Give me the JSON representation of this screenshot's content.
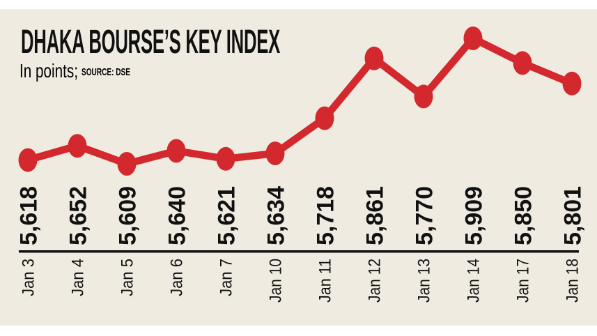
{
  "title": "DHAKA BOURSE’S KEY INDEX",
  "subtitle": "In points;",
  "source_label": "SOURCE: DSE",
  "colors": {
    "line": "#d2282e",
    "panel_background": "#f0ebe1",
    "page_background": "#ffffff",
    "text": "#111111"
  },
  "chart_data": {
    "type": "line",
    "title": "DHAKA BOURSE'S KEY INDEX",
    "ylabel": "In points",
    "xlabel": "",
    "source": "DSE",
    "categories": [
      "Jan 3",
      "Jan 4",
      "Jan 5",
      "Jan 6",
      "Jan 7",
      "Jan 10",
      "Jan 11",
      "Jan 12",
      "Jan 13",
      "Jan 14",
      "Jan 17",
      "Jan 18"
    ],
    "values": [
      5618,
      5652,
      5609,
      5640,
      5621,
      5634,
      5718,
      5861,
      5770,
      5909,
      5850,
      5801
    ],
    "value_labels": [
      "5,618",
      "5,652",
      "5,609",
      "5,640",
      "5,621",
      "5,634",
      "5,718",
      "5,861",
      "5,770",
      "5,909",
      "5,850",
      "5,801"
    ],
    "legend": false,
    "grid": false
  }
}
